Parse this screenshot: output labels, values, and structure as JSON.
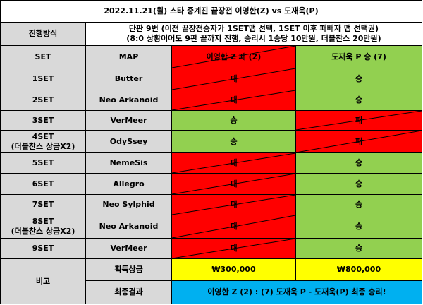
{
  "title": "2022.11.21(월) 스타 중계진 끝장전 이영한(Z) vs 도재욱(P)",
  "rules": {
    "label": "진행방식",
    "lines": [
      "단판 9번 (이전 끝장전승자가 1SET맵 선택, 1SET 이후 패배자 맵 선택권)",
      "(8:0 상황이어도 9판 끝까지 진행, 승리시 1승당 10만원, 더블찬스 20만원)"
    ]
  },
  "header": {
    "set": "SET",
    "map": "MAP",
    "p1": {
      "text": "이영한 Z 패 (2)",
      "color": "#ff0000",
      "crossed": true
    },
    "p2": {
      "text": "도재욱 P 승 (7)",
      "color": "#92d050",
      "crossed": false
    }
  },
  "rows": [
    {
      "set": "1SET",
      "map": "Butter",
      "p1": {
        "text": "패",
        "color": "#ff0000",
        "crossed": true
      },
      "p2": {
        "text": "승",
        "color": "#92d050",
        "crossed": false
      }
    },
    {
      "set": "2SET",
      "map": "Neo Arkanoid",
      "p1": {
        "text": "패",
        "color": "#ff0000",
        "crossed": true
      },
      "p2": {
        "text": "승",
        "color": "#92d050",
        "crossed": false
      }
    },
    {
      "set": "3SET",
      "map": "VerMeer",
      "p1": {
        "text": "승",
        "color": "#92d050",
        "crossed": false
      },
      "p2": {
        "text": "패",
        "color": "#ff0000",
        "crossed": true
      }
    },
    {
      "set": "4SET",
      "note": "(더블찬스 상금X2)",
      "map": "OdySsey",
      "p1": {
        "text": "승",
        "color": "#92d050",
        "crossed": false
      },
      "p2": {
        "text": "패",
        "color": "#ff0000",
        "crossed": true
      }
    },
    {
      "set": "5SET",
      "map": "NemeSis",
      "p1": {
        "text": "패",
        "color": "#ff0000",
        "crossed": true
      },
      "p2": {
        "text": "승",
        "color": "#92d050",
        "crossed": false
      }
    },
    {
      "set": "6SET",
      "map": "Allegro",
      "p1": {
        "text": "패",
        "color": "#ff0000",
        "crossed": true
      },
      "p2": {
        "text": "승",
        "color": "#92d050",
        "crossed": false
      }
    },
    {
      "set": "7SET",
      "map": "Neo Sylphid",
      "p1": {
        "text": "패",
        "color": "#ff0000",
        "crossed": true
      },
      "p2": {
        "text": "승",
        "color": "#92d050",
        "crossed": false
      }
    },
    {
      "set": "8SET",
      "note": "(더블찬스 상금X2)",
      "map": "Neo Arkanoid",
      "p1": {
        "text": "패",
        "color": "#ff0000",
        "crossed": true
      },
      "p2": {
        "text": "승",
        "color": "#92d050",
        "crossed": false
      }
    },
    {
      "set": "9SET",
      "map": "VerMeer",
      "p1": {
        "text": "패",
        "color": "#ff0000",
        "crossed": true
      },
      "p2": {
        "text": "승",
        "color": "#92d050",
        "crossed": false
      }
    }
  ],
  "remarks": {
    "label": "비고",
    "prize": {
      "label": "획득상금",
      "p1": "₩300,000",
      "p2": "₩800,000",
      "color": "#ffff00"
    },
    "result": {
      "label": "최종결과",
      "text": "이영한 Z (2) : (7) 도재욱 P - 도재욱(P) 최종 승리!",
      "color": "#00b0f0"
    }
  }
}
